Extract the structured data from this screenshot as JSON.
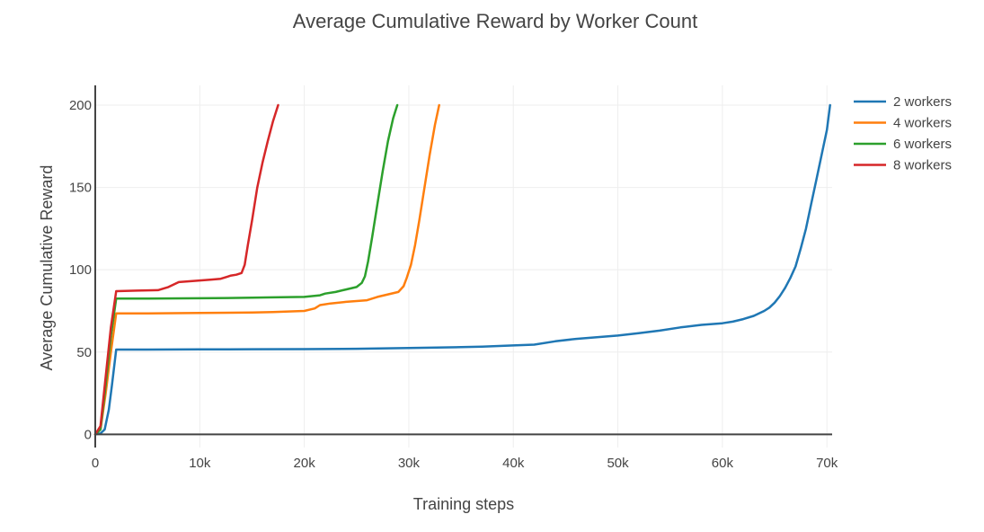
{
  "chart_data": {
    "type": "line",
    "title": "Average Cumulative Reward by Worker Count",
    "xlabel": "Training steps",
    "ylabel": "Average Cumulative Reward",
    "xlim": [
      0,
      70500
    ],
    "ylim": [
      -8,
      212
    ],
    "x_ticks": [
      0,
      10000,
      20000,
      30000,
      40000,
      50000,
      60000,
      70000
    ],
    "x_tick_labels": [
      "0",
      "10k",
      "20k",
      "30k",
      "40k",
      "50k",
      "60k",
      "70k"
    ],
    "y_ticks": [
      0,
      50,
      100,
      150,
      200
    ],
    "y_tick_labels": [
      "0",
      "50",
      "100",
      "150",
      "200"
    ],
    "grid": true,
    "legend_position": "top-right",
    "series": [
      {
        "name": "2 workers",
        "color": "#1f77b4",
        "x": [
          0,
          500,
          900,
          1300,
          1600,
          2000,
          5000,
          10000,
          15000,
          20000,
          25000,
          30000,
          35000,
          37000,
          40000,
          42000,
          44000,
          46000,
          48000,
          50000,
          52000,
          54000,
          56000,
          58000,
          60000,
          61000,
          62000,
          63000,
          63500,
          64000,
          64500,
          65000,
          65500,
          66000,
          66500,
          67000,
          67500,
          68000,
          68500,
          69000,
          69500,
          70000,
          70300
        ],
        "y": [
          0,
          0.5,
          3,
          15,
          30,
          51.5,
          51.5,
          51.6,
          51.7,
          51.8,
          52,
          52.5,
          53,
          53.3,
          54,
          54.5,
          56.5,
          58,
          59,
          60,
          61.5,
          63,
          65,
          66.5,
          67.5,
          68.5,
          70,
          72,
          73.5,
          75,
          77,
          80,
          84,
          89,
          95,
          102,
          113,
          125,
          140,
          155,
          170,
          185,
          200
        ]
      },
      {
        "name": "4 workers",
        "color": "#ff7f0e",
        "x": [
          0,
          500,
          1000,
          1500,
          2000,
          5000,
          10000,
          15000,
          17000,
          20000,
          21000,
          21500,
          22500,
          24000,
          26000,
          27000,
          28000,
          29000,
          29500,
          29800,
          30200,
          30600,
          31000,
          31500,
          32000,
          32500,
          32900
        ],
        "y": [
          0,
          3,
          25,
          50,
          73.5,
          73.5,
          73.7,
          74,
          74.3,
          75,
          76.5,
          78.5,
          79.5,
          80.5,
          81.5,
          83.5,
          85,
          86.5,
          90,
          95,
          103,
          115,
          130,
          150,
          170,
          188,
          200
        ]
      },
      {
        "name": "6 workers",
        "color": "#2ca02c",
        "x": [
          0,
          500,
          1000,
          1500,
          2000,
          5000,
          10000,
          15000,
          17000,
          20000,
          21500,
          22000,
          23000,
          24000,
          25000,
          25500,
          25800,
          26100,
          26500,
          27000,
          27500,
          28000,
          28500,
          28900
        ],
        "y": [
          0,
          3,
          30,
          60,
          82.5,
          82.5,
          82.7,
          83,
          83.2,
          83.5,
          84.5,
          85.5,
          86.5,
          88,
          89.5,
          92,
          96,
          105,
          120,
          140,
          160,
          178,
          192,
          200
        ]
      },
      {
        "name": "8 workers",
        "color": "#d62728",
        "x": [
          0,
          500,
          1000,
          1500,
          2000,
          4000,
          6000,
          7000,
          7500,
          8000,
          9000,
          10000,
          11000,
          12000,
          12500,
          13000,
          13500,
          14000,
          14300,
          14600,
          15000,
          15500,
          16000,
          16500,
          17000,
          17500
        ],
        "y": [
          0,
          5,
          35,
          65,
          87,
          87.3,
          87.6,
          89.5,
          91,
          92.5,
          93,
          93.5,
          94,
          94.5,
          95.5,
          96.5,
          97,
          98,
          103,
          115,
          130,
          150,
          165,
          178,
          190,
          200
        ]
      }
    ]
  }
}
